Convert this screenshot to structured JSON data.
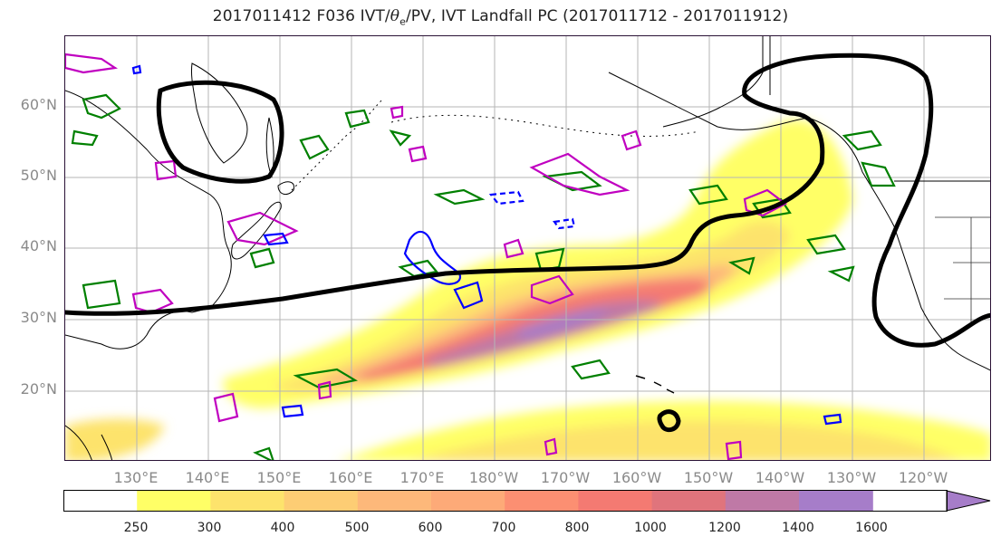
{
  "title": {
    "prefix": "2017011412 F036 IVT/",
    "theta": "θ",
    "sub": "e",
    "suffix": "/PV, IVT Landfall PC (2017011712 - 2017011912)"
  },
  "axes": {
    "lat_labels": [
      "60°N",
      "50°N",
      "40°N",
      "30°N",
      "20°N"
    ],
    "lon_labels": [
      "130°E",
      "140°E",
      "150°E",
      "160°E",
      "170°E",
      "180°W",
      "170°W",
      "160°W",
      "150°W",
      "140°W",
      "130°W",
      "120°W"
    ]
  },
  "colorbar": {
    "ticks": [
      "250",
      "300",
      "400",
      "500",
      "600",
      "700",
      "800",
      "1000",
      "1200",
      "1400",
      "1600"
    ],
    "colors": [
      "#ffffff",
      "#ffff66",
      "#fde36c",
      "#fdcd74",
      "#fdb87a",
      "#fdaa78",
      "#fc8f72",
      "#f47a72",
      "#e0747c",
      "#bf79a6",
      "#a67dc9"
    ]
  },
  "legend_colors": {
    "ivt_pc_contour": "#000000",
    "theta_e_contour": "#0000ff",
    "pv_contour_a": "#008000",
    "pv_contour_b": "#c000c0"
  }
}
